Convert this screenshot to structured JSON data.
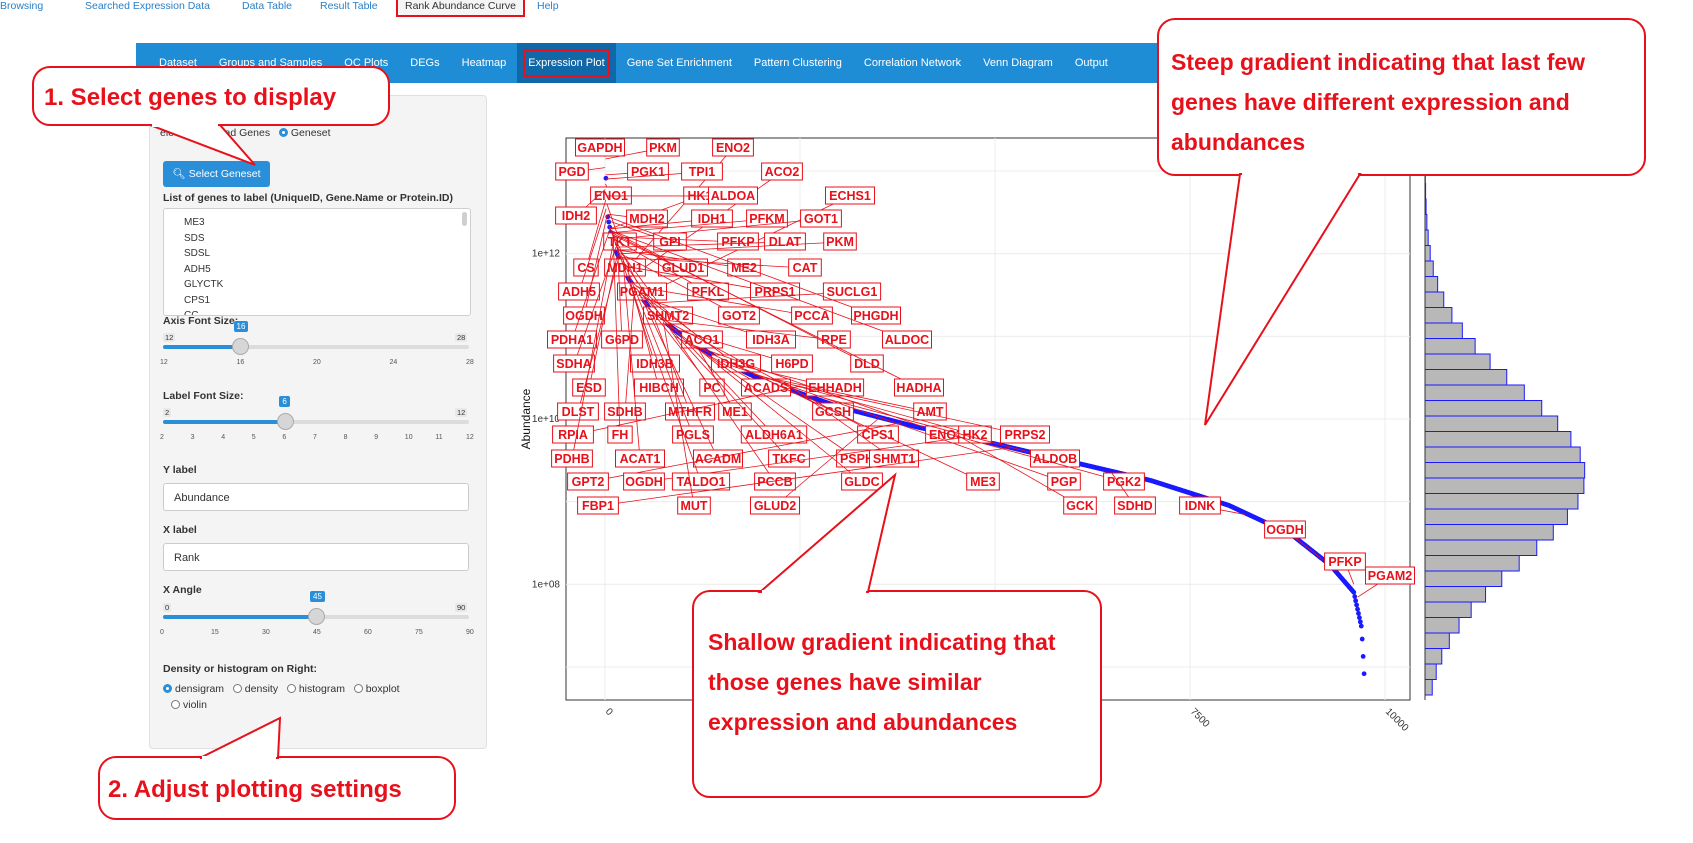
{
  "nav": {
    "items": [
      "Dataset",
      "Groups and Samples",
      "QC Plots",
      "DEGs",
      "Heatmap",
      "Expression Plot",
      "Gene Set Enrichment",
      "Pattern Clustering",
      "Correlation Network",
      "Venn Diagram",
      "Output"
    ],
    "active": "Expression Plot"
  },
  "subtabs": {
    "items": [
      "Browsing",
      "Searched Expression Data",
      "Data Table",
      "Result Table",
      "Rank Abundance Curve",
      "Help"
    ],
    "active": "Rank Abundance Curve"
  },
  "sidebar": {
    "select_radio": {
      "options": [
        "elect",
        "Upload Genes",
        "Geneset"
      ],
      "selected": "Geneset"
    },
    "select_geneset_button": "Select Geneset",
    "gene_list_label": "List of genes to label (UniqueID, Gene.Name or Protein.ID)",
    "gene_list": [
      "ME3",
      "SDS",
      "SDSL",
      "ADH5",
      "GLYCTK",
      "CPS1",
      "CC"
    ],
    "axis_font": {
      "label": "Axis Font Size:",
      "min": "12",
      "max": "28",
      "value": "16",
      "value_num": 16,
      "ticks": [
        "12",
        "16",
        "20",
        "24",
        "28"
      ]
    },
    "label_font": {
      "label": "Label Font Size:",
      "min": "2",
      "max": "12",
      "value": "6",
      "value_num": 6,
      "ticks": [
        "2",
        "3",
        "4",
        "5",
        "6",
        "7",
        "8",
        "9",
        "10",
        "11",
        "12"
      ]
    },
    "y_label": {
      "label": "Y label",
      "value": "Abundance"
    },
    "x_label": {
      "label": "X label",
      "value": "Rank"
    },
    "x_angle": {
      "label": "X Angle",
      "min": "0",
      "max": "90",
      "value": "45",
      "value_num": 45,
      "ticks": [
        "0",
        "15",
        "30",
        "45",
        "60",
        "75",
        "90"
      ]
    },
    "density": {
      "label": "Density or histogram on Right:",
      "options": [
        "densigram",
        "density",
        "histogram",
        "boxplot",
        "violin"
      ],
      "selected": "densigram"
    }
  },
  "callouts": {
    "select_genes": "1. Select genes to display",
    "adjust_settings": "2. Adjust plotting settings",
    "steep": [
      "Steep gradient indicating that last few",
      "genes have different expression and",
      "abundances"
    ],
    "shallow": [
      "Shallow gradient indicating that",
      "those genes have similar",
      "expression and abundances"
    ]
  },
  "colors": {
    "accent": "#e8101a",
    "nav": "#1f8dd6",
    "points": "#1a1aff"
  },
  "chart_data": {
    "type": "scatter",
    "ylabel": "Abundance",
    "xlabel": "",
    "y_scale": "log10",
    "y_ticks": [
      "1e+12",
      "1e+10",
      "1e+08"
    ],
    "x_ticks": [
      "0",
      "7500",
      "10000"
    ],
    "xlim": [
      0,
      10000
    ],
    "curve": [
      [
        0,
        16000000000000.0
      ],
      [
        30,
        3000000000000.0
      ],
      [
        100,
        1300000000000.0
      ],
      [
        300,
        500000000000.0
      ],
      [
        600,
        200000000000.0
      ],
      [
        1000,
        100000000000.0
      ],
      [
        1500,
        50000000000.0
      ],
      [
        2000,
        30000000000.0
      ],
      [
        3000,
        14000000000.0
      ],
      [
        4000,
        8000000000.0
      ],
      [
        5000,
        5000000000.0
      ],
      [
        6000,
        3000000000.0
      ],
      [
        7000,
        1800000000.0
      ],
      [
        8000,
        900000000.0
      ],
      [
        8800,
        400000000.0
      ],
      [
        9300,
        170000000.0
      ],
      [
        9600,
        80000000.0
      ],
      [
        9700,
        30000000.0
      ],
      [
        9740,
        6000000.0
      ]
    ],
    "labels": [
      {
        "text": "GAPDH",
        "x": 1,
        "y": 15000000000000.0
      },
      {
        "text": "PKM",
        "x": 5,
        "y": 14000000000000.0
      },
      {
        "text": "ENO2",
        "x": 250,
        "y": 600000000000.0
      },
      {
        "text": "PGD",
        "x": 2,
        "y": 11000000000000.0
      },
      {
        "text": "PGK1",
        "x": 8,
        "y": 9000000000000.0
      },
      {
        "text": "TPI1",
        "x": 12,
        "y": 8000000000000.0
      },
      {
        "text": "ACO2",
        "x": 300,
        "y": 500000000000.0
      },
      {
        "text": "ENO1",
        "x": 6,
        "y": 7000000000000.0
      },
      {
        "text": "HK1",
        "x": 60,
        "y": 2000000000000.0
      },
      {
        "text": "ALDOA",
        "x": 20,
        "y": 5000000000000.0
      },
      {
        "text": "ECHS1",
        "x": 450,
        "y": 300000000000.0
      },
      {
        "text": "IDH2",
        "x": 3,
        "y": 6000000000000.0
      },
      {
        "text": "MDH2",
        "x": 40,
        "y": 3000000000000.0
      },
      {
        "text": "IDH1",
        "x": 70,
        "y": 2000000000000.0
      },
      {
        "text": "PFKM",
        "x": 90,
        "y": 1800000000000.0
      },
      {
        "text": "GOT1",
        "x": 120,
        "y": 1500000000000.0
      },
      {
        "text": "TKT",
        "x": 25,
        "y": 4000000000000.0
      },
      {
        "text": "GPI",
        "x": 45,
        "y": 2500000000000.0
      },
      {
        "text": "PFKP",
        "x": 100,
        "y": 1600000000000.0
      },
      {
        "text": "DLAT",
        "x": 150,
        "y": 1200000000000.0
      },
      {
        "text": "PKM",
        "x": 200,
        "y": 1000000000000.0
      },
      {
        "text": "CS",
        "x": 10,
        "y": 4500000000000.0
      },
      {
        "text": "MDH1",
        "x": 50,
        "y": 2200000000000.0
      },
      {
        "text": "GLUD1",
        "x": 80,
        "y": 1900000000000.0
      },
      {
        "text": "ME2",
        "x": 180,
        "y": 1100000000000.0
      },
      {
        "text": "CAT",
        "x": 220,
        "y": 900000000000.0
      },
      {
        "text": "ADH5",
        "x": 15,
        "y": 3500000000000.0
      },
      {
        "text": "PGAM1",
        "x": 55,
        "y": 2100000000000.0
      },
      {
        "text": "PFKL",
        "x": 110,
        "y": 1500000000000.0
      },
      {
        "text": "PRPS1",
        "x": 280,
        "y": 700000000000.0
      },
      {
        "text": "SUCLG1",
        "x": 500,
        "y": 250000000000.0
      },
      {
        "text": "OGDH",
        "x": 30,
        "y": 3000000000000.0
      },
      {
        "text": "SHMT2",
        "x": 130,
        "y": 1300000000000.0
      },
      {
        "text": "GOT2",
        "x": 200,
        "y": 1000000000000.0
      },
      {
        "text": "PCCA",
        "x": 400,
        "y": 400000000000.0
      },
      {
        "text": "PHGDH",
        "x": 35,
        "y": 2800000000000.0
      },
      {
        "text": "PDHA1",
        "x": 65,
        "y": 2000000000000.0
      },
      {
        "text": "G6PD",
        "x": 160,
        "y": 1200000000000.0
      },
      {
        "text": "ACO1",
        "x": 350,
        "y": 450000000000.0
      },
      {
        "text": "IDH3A",
        "x": 450,
        "y": 300000000000.0
      },
      {
        "text": "RPE",
        "x": 700,
        "y": 160000000000.0
      },
      {
        "text": "ALDOC",
        "x": 75,
        "y": 1900000000000.0
      },
      {
        "text": "SDHA",
        "x": 140,
        "y": 1200000000000.0
      },
      {
        "text": "IDH3B",
        "x": 300,
        "y": 500000000000.0
      },
      {
        "text": "IDH3G",
        "x": 420,
        "y": 350000000000.0
      },
      {
        "text": "H6PD",
        "x": 800,
        "y": 130000000000.0
      },
      {
        "text": "DLD",
        "x": 85,
        "y": 1800000000000.0
      },
      {
        "text": "ESD",
        "x": 170,
        "y": 1100000000000.0
      },
      {
        "text": "HIBCH",
        "x": 330,
        "y": 450000000000.0
      },
      {
        "text": "PC",
        "x": 480,
        "y": 280000000000.0
      },
      {
        "text": "ACADS",
        "x": 900,
        "y": 100000000000.0
      },
      {
        "text": "EHHADH",
        "x": 1500,
        "y": 50000000000.0
      },
      {
        "text": "HADHA",
        "x": 95,
        "y": 1700000000000.0
      },
      {
        "text": "DLST",
        "x": 190,
        "y": 1000000000000.0
      },
      {
        "text": "SDHB",
        "x": 380,
        "y": 400000000000.0
      },
      {
        "text": "MTHFR",
        "x": 600,
        "y": 200000000000.0
      },
      {
        "text": "ME1",
        "x": 1200,
        "y": 70000000000.0
      },
      {
        "text": "GCSH",
        "x": 1800,
        "y": 40000000000.0
      },
      {
        "text": "AMT",
        "x": 2200,
        "y": 30000000000.0
      },
      {
        "text": "RPIA",
        "x": 2500,
        "y": 25000000000.0
      },
      {
        "text": "FH",
        "x": 105,
        "y": 1600000000000.0
      },
      {
        "text": "PGLS",
        "x": 210,
        "y": 950000000000.0
      },
      {
        "text": "ALDH6A1",
        "x": 400,
        "y": 380000000000.0
      },
      {
        "text": "CPS1",
        "x": 650,
        "y": 180000000000.0
      },
      {
        "text": "ENO3",
        "x": 1100,
        "y": 80000000000.0
      },
      {
        "text": "HK2",
        "x": 1900,
        "y": 35000000000.0
      },
      {
        "text": "PRPS2",
        "x": 2400,
        "y": 26000000000.0
      },
      {
        "text": "PDHB",
        "x": 115,
        "y": 1500000000000.0
      },
      {
        "text": "ACAT1",
        "x": 230,
        "y": 850000000000.0
      },
      {
        "text": "ACADM",
        "x": 450,
        "y": 320000000000.0
      },
      {
        "text": "TKFC",
        "x": 850,
        "y": 120000000000.0
      },
      {
        "text": "PSPH",
        "x": 1300,
        "y": 60000000000.0
      },
      {
        "text": "SHMT1",
        "x": 2300,
        "y": 28000000000.0
      },
      {
        "text": "ALDOB",
        "x": 2800,
        "y": 18000000000.0
      },
      {
        "text": "GPT2",
        "x": 3800,
        "y": 9000000000.0
      },
      {
        "text": "OGDH",
        "x": 4600,
        "y": 6000000000.0
      },
      {
        "text": "TALDO1",
        "x": 125,
        "y": 1400000000000.0
      },
      {
        "text": "PCCB",
        "x": 260,
        "y": 750000000000.0
      },
      {
        "text": "GLDC",
        "x": 550,
        "y": 220000000000.0
      },
      {
        "text": "ME3",
        "x": 1050,
        "y": 85000000000.0
      },
      {
        "text": "PGP",
        "x": 1600,
        "y": 45000000000.0
      },
      {
        "text": "PGK2",
        "x": 4300,
        "y": 7000000000.0
      },
      {
        "text": "FBP1",
        "x": 5200,
        "y": 4500000000.0
      },
      {
        "text": "MUT",
        "x": 750,
        "y": 150000000000.0
      },
      {
        "text": "GLUD2",
        "x": 3500,
        "y": 10000000000.0
      },
      {
        "text": "GCK",
        "x": 4500,
        "y": 6500000000.0
      },
      {
        "text": "SDHD",
        "x": 6500,
        "y": 2200000000.0
      },
      {
        "text": "IDNK",
        "x": 8200,
        "y": 700000000.0
      },
      {
        "text": "OGDH",
        "x": 9200,
        "y": 200000000.0
      },
      {
        "text": "PFKP",
        "x": 9600,
        "y": 100000000.0
      },
      {
        "text": "PGAM2",
        "x": 9650,
        "y": 70000000.0
      }
    ],
    "marginal": "histogram-with-density"
  }
}
